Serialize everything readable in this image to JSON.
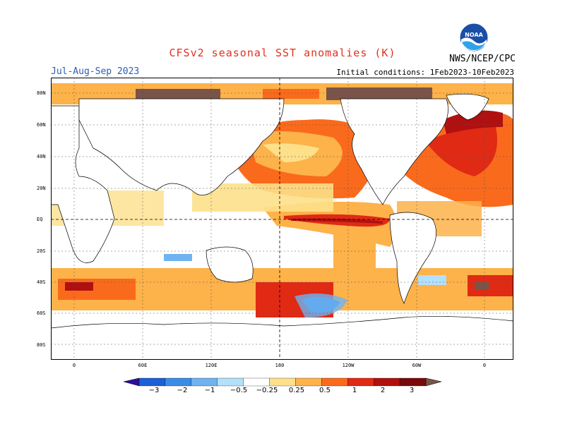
{
  "header": {
    "title": "CFSv2 seasonal SST anomalies (K)",
    "season": "Jul-Aug-Sep 2023",
    "initial_conditions": "Initial conditions: 1Feb2023-10Feb2023",
    "agency": "NWS/NCEP/CPC",
    "logo_text": "NOAA"
  },
  "axes": {
    "lat_labels": [
      "80N",
      "60N",
      "40N",
      "20N",
      "EQ",
      "20S",
      "40S",
      "60S",
      "80S"
    ],
    "lon_labels": [
      "0",
      "60E",
      "120E",
      "180",
      "120W",
      "60W",
      "0"
    ]
  },
  "colorbar": {
    "labels": [
      "−3",
      "−2",
      "−1",
      "−0.5",
      "−0.25",
      "0.25",
      "0.5",
      "1",
      "2",
      "3"
    ],
    "colors": [
      "#2b0f9e",
      "#1d5fd6",
      "#3a8ce6",
      "#6fb3f0",
      "#b3e0fa",
      "#ffffff",
      "#fde089",
      "#fdb24a",
      "#fa6a1c",
      "#e02a14",
      "#b01010",
      "#7a0a0a",
      "#7a5448"
    ]
  }
}
